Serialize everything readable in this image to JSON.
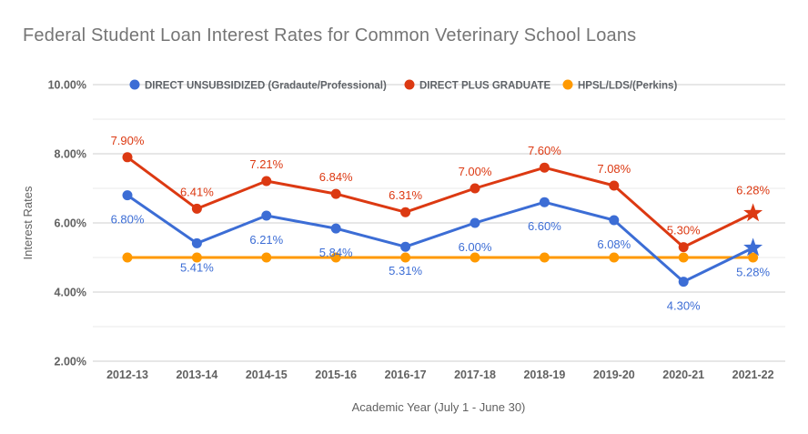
{
  "chart_data": {
    "type": "line",
    "title": "Federal Student Loan Interest Rates for Common Veterinary School Loans",
    "xlabel": "Academic Year (July 1 - June 30)",
    "ylabel": "Interest Rates",
    "legend_position": "top",
    "grid": "horizontal major + minor",
    "categories": [
      "2012-13",
      "2013-14",
      "2014-15",
      "2015-16",
      "2016-17",
      "2017-18",
      "2018-19",
      "2019-20",
      "2020-21",
      "2021-22"
    ],
    "series": [
      {
        "name": "DIRECT UNSUBSIDIZED (Gradaute/Professional)",
        "color": "#3c6dd5",
        "marker": "circle",
        "last_marker": "star",
        "label_position": "below",
        "values": [
          6.8,
          5.41,
          6.21,
          5.84,
          5.31,
          6.0,
          6.6,
          6.08,
          4.3,
          5.28
        ],
        "data_labels": [
          "6.80%",
          "5.41%",
          "6.21%",
          "5.84%",
          "5.31%",
          "6.00%",
          "6.60%",
          "6.08%",
          "4.30%",
          "5.28%"
        ]
      },
      {
        "name": "DIRECT PLUS GRADUATE",
        "color": "#dc3912",
        "marker": "circle",
        "last_marker": "star",
        "label_position": "above",
        "values": [
          7.9,
          6.41,
          7.21,
          6.84,
          6.31,
          7.0,
          7.6,
          7.08,
          5.3,
          6.28
        ],
        "data_labels": [
          "7.90%",
          "6.41%",
          "7.21%",
          "6.84%",
          "6.31%",
          "7.00%",
          "7.60%",
          "7.08%",
          "5.30%",
          "6.28%"
        ]
      },
      {
        "name": "HPSL/LDS/(Perkins)",
        "color": "#ff9900",
        "marker": "circle",
        "last_marker": "circle",
        "label_position": "none",
        "values": [
          5.0,
          5.0,
          5.0,
          5.0,
          5.0,
          5.0,
          5.0,
          5.0,
          5.0,
          5.0
        ],
        "data_labels": null
      }
    ],
    "y_axis": {
      "range": [
        2,
        10
      ],
      "ticks": [
        {
          "value": 10,
          "label": "10.00%"
        },
        {
          "value": 8,
          "label": "8.00%"
        },
        {
          "value": 6,
          "label": "6.00%"
        },
        {
          "value": 4,
          "label": "4.00%"
        },
        {
          "value": 2,
          "label": "2.00%"
        }
      ],
      "minor_tick_values": [
        9,
        7,
        5,
        3
      ]
    },
    "style": {
      "title_color": "#757575",
      "axis_text_color": "#616161",
      "legend_text_color": "#5f6368",
      "major_grid_color": "#cfcfcf",
      "minor_grid_color": "#e8e8e8",
      "background": "#ffffff"
    }
  }
}
